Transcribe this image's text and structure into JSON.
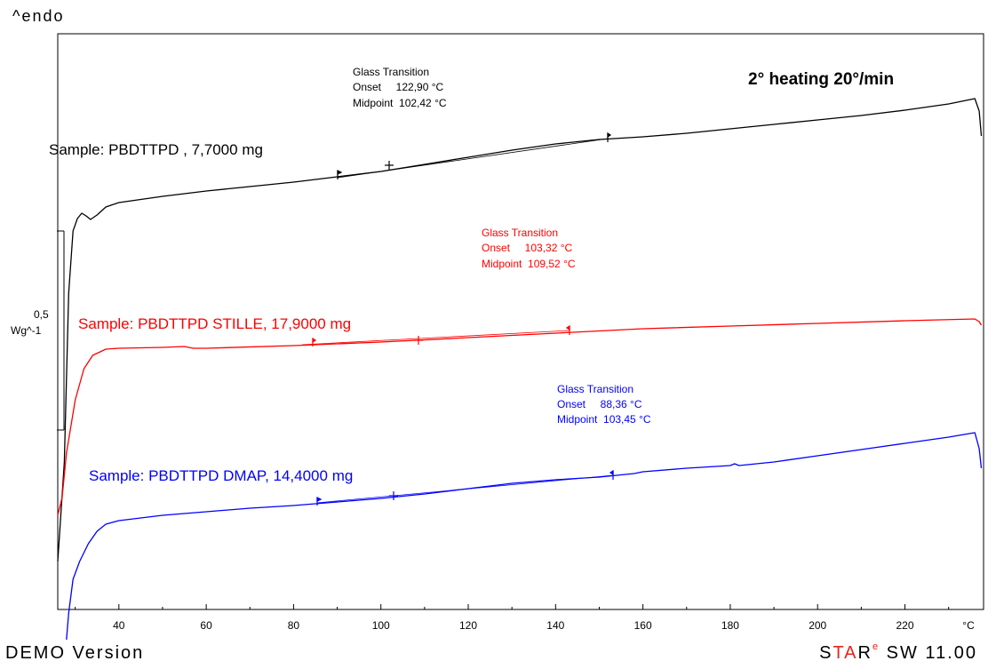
{
  "header": {
    "ylabel": "^endo",
    "title": "2° heating 20°/min"
  },
  "footer": {
    "left": "DEMO Version",
    "right_st": "S",
    "right_ta": "TA",
    "right_r": "R",
    "right_e": "e",
    "right_ver": " SW 11.00"
  },
  "scalebar": {
    "value": "0,5",
    "unit": "Wg^-1"
  },
  "chart_data": {
    "type": "line",
    "xlabel": "°C",
    "xlim": [
      26,
      238
    ],
    "x_ticks": [
      40,
      60,
      80,
      100,
      120,
      140,
      160,
      180,
      200,
      220
    ],
    "series": [
      {
        "name": "Sample: PBDTTPD , 7,7000 mg",
        "color": "#000000",
        "points": [
          [
            26,
            632
          ],
          [
            27.5,
            520
          ],
          [
            28.5,
            330
          ],
          [
            29.5,
            260
          ],
          [
            30.5,
            246
          ],
          [
            31.5,
            240
          ],
          [
            32.5,
            243
          ],
          [
            33.5,
            247
          ],
          [
            35,
            242
          ],
          [
            37,
            233
          ],
          [
            40,
            228
          ],
          [
            50,
            221
          ],
          [
            60,
            215
          ],
          [
            70,
            210
          ],
          [
            80,
            205
          ],
          [
            90,
            199
          ],
          [
            100,
            193
          ],
          [
            110,
            185
          ],
          [
            120,
            177
          ],
          [
            130,
            169
          ],
          [
            140,
            162
          ],
          [
            150,
            157
          ],
          [
            160,
            154
          ],
          [
            170,
            150
          ],
          [
            180,
            145
          ],
          [
            190,
            140
          ],
          [
            200,
            135
          ],
          [
            210,
            130
          ],
          [
            220,
            124
          ],
          [
            230,
            117
          ],
          [
            236,
            111
          ],
          [
            237,
            125
          ],
          [
            237.5,
            153
          ]
        ],
        "annotation": {
          "title": "Glass Transition",
          "lines": [
            "Onset     122,90 °C",
            "Midpoint  102,42 °C"
          ]
        }
      },
      {
        "name": "Sample: PBDTTPD STILLE, 17,9000 mg",
        "color": "#ff0000",
        "points": [
          [
            26,
            580
          ],
          [
            27,
            560
          ],
          [
            28,
            510
          ],
          [
            30,
            450
          ],
          [
            32,
            415
          ],
          [
            34,
            400
          ],
          [
            37,
            393
          ],
          [
            40,
            392
          ],
          [
            50,
            391
          ],
          [
            55,
            390
          ],
          [
            57,
            392
          ],
          [
            60,
            392
          ],
          [
            80,
            389
          ],
          [
            100,
            385
          ],
          [
            120,
            380
          ],
          [
            140,
            375
          ],
          [
            160,
            370
          ],
          [
            180,
            367
          ],
          [
            200,
            364
          ],
          [
            220,
            361
          ],
          [
            236,
            359
          ],
          [
            237,
            362
          ],
          [
            237.5,
            366
          ]
        ],
        "annotation": {
          "title": "Glass Transition",
          "lines": [
            "Onset     103,32 °C",
            "Midpoint  109,52 °C"
          ]
        }
      },
      {
        "name": "Sample: PBDTTPD DMAP, 14,4000 mg",
        "color": "#0000ff",
        "points": [
          [
            28,
            720
          ],
          [
            28.5,
            690
          ],
          [
            29.5,
            652
          ],
          [
            31,
            632
          ],
          [
            33,
            612
          ],
          [
            35,
            598
          ],
          [
            37,
            590
          ],
          [
            40,
            586
          ],
          [
            50,
            580
          ],
          [
            60,
            576
          ],
          [
            70,
            572
          ],
          [
            80,
            569
          ],
          [
            90,
            565
          ],
          [
            100,
            561
          ],
          [
            110,
            556
          ],
          [
            120,
            550
          ],
          [
            130,
            544
          ],
          [
            140,
            540
          ],
          [
            150,
            537
          ],
          [
            158,
            533
          ],
          [
            160,
            531
          ],
          [
            170,
            527
          ],
          [
            180,
            524
          ],
          [
            181,
            522
          ],
          [
            182,
            524
          ],
          [
            190,
            520
          ],
          [
            200,
            513
          ],
          [
            210,
            506
          ],
          [
            220,
            499
          ],
          [
            230,
            492
          ],
          [
            236,
            487
          ],
          [
            237,
            505
          ],
          [
            237.5,
            527
          ]
        ],
        "annotation": {
          "title": "Glass Transition",
          "lines": [
            "Onset     88,36 °C",
            "Midpoint  103,45 °C"
          ]
        }
      }
    ]
  }
}
